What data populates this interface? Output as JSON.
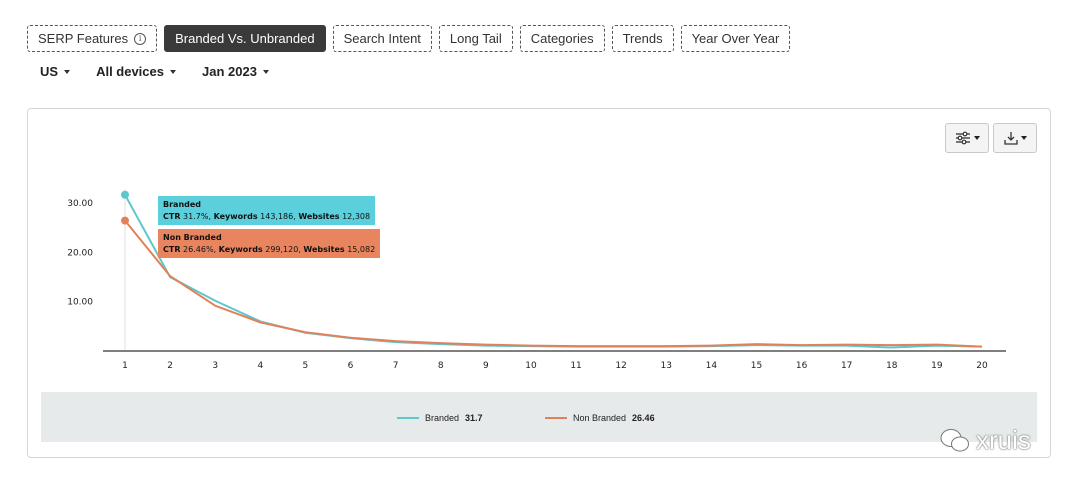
{
  "tabs": [
    {
      "label": "SERP Features",
      "has_info_icon": true,
      "active": false
    },
    {
      "label": "Branded Vs. Unbranded",
      "active": true
    },
    {
      "label": "Search Intent",
      "active": false
    },
    {
      "label": "Long Tail",
      "active": false
    },
    {
      "label": "Categories",
      "active": false
    },
    {
      "label": "Trends",
      "active": false
    },
    {
      "label": "Year Over Year",
      "active": false
    }
  ],
  "filters": {
    "country": "US",
    "devices": "All devices",
    "date": "Jan 2023"
  },
  "toolbar": {
    "settings_icon": "sliders-icon",
    "download_icon": "download-icon"
  },
  "chart_data": {
    "type": "line",
    "x": [
      1,
      2,
      3,
      4,
      5,
      6,
      7,
      8,
      9,
      10,
      11,
      12,
      13,
      14,
      15,
      16,
      17,
      18,
      19,
      20
    ],
    "y_ticks": [
      "10.00",
      "20.00",
      "30.00"
    ],
    "ylim": [
      0,
      42
    ],
    "grid": false,
    "series": [
      {
        "name": "Branded",
        "color": "#5cc8cc",
        "values": [
          31.7,
          15.0,
          10.2,
          6.0,
          3.7,
          2.6,
          1.8,
          1.4,
          1.1,
          1.0,
          0.9,
          0.9,
          0.9,
          1.0,
          1.2,
          1.1,
          1.1,
          0.7,
          1.1,
          0.9
        ]
      },
      {
        "name": "Non Branded",
        "color": "#e2805a",
        "values": [
          26.46,
          15.2,
          9.2,
          5.8,
          3.8,
          2.7,
          2.0,
          1.6,
          1.3,
          1.1,
          1.0,
          1.0,
          1.0,
          1.1,
          1.4,
          1.2,
          1.3,
          1.2,
          1.3,
          0.9
        ]
      }
    ],
    "tooltip": {
      "branded": {
        "name": "Branded",
        "ctr": "31.7%",
        "keywords": "143,186",
        "websites": "12,308"
      },
      "non_branded": {
        "name": "Non Branded",
        "ctr": "26.46%",
        "keywords": "299,120",
        "websites": "15,082"
      },
      "ctr_label": "CTR",
      "keywords_label": "Keywords",
      "websites_label": "Websites"
    },
    "legend": [
      {
        "name": "Branded",
        "value": "31.7"
      },
      {
        "name": "Non Branded",
        "value": "26.46"
      }
    ],
    "legend_placement": "bottom"
  },
  "watermark": {
    "text": "xruis"
  }
}
